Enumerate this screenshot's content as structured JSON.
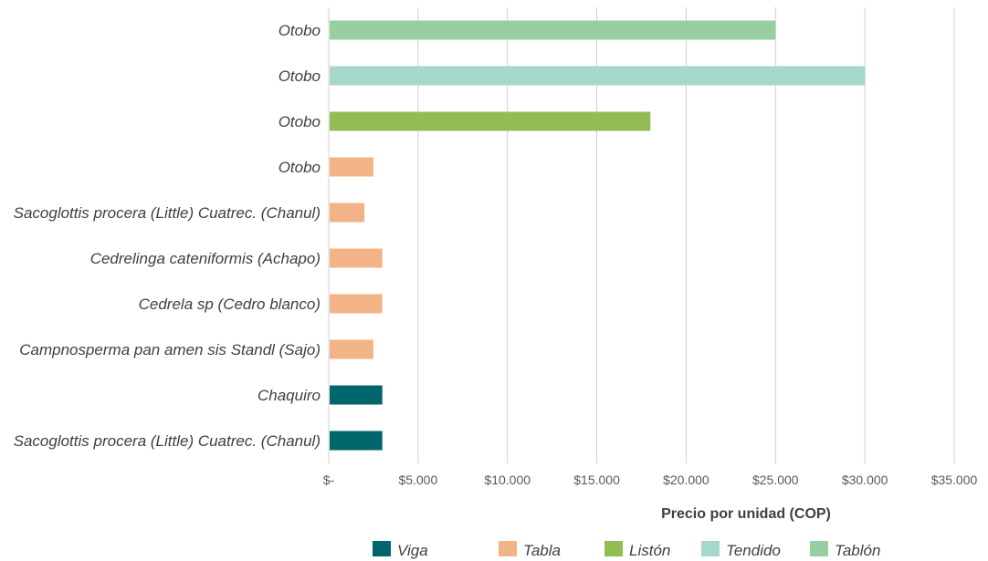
{
  "chart_data": {
    "type": "bar",
    "orientation": "horizontal",
    "title": "",
    "xlabel": "Precio por unidad (COP)",
    "ylabel": "",
    "xlim": [
      0,
      35000
    ],
    "grid": true,
    "legend_position": "bottom",
    "x_ticks": [
      0,
      5000,
      10000,
      15000,
      20000,
      25000,
      30000,
      35000
    ],
    "x_tick_labels": [
      "$-",
      "$5.000",
      "$10.000",
      "$15.000",
      "$20.000",
      "$25.000",
      "$30.000",
      "$35.000"
    ],
    "series_legend": [
      {
        "name": "Viga",
        "color": "#00666b"
      },
      {
        "name": "Tabla",
        "color": "#f2b486"
      },
      {
        "name": "Listón",
        "color": "#92bd55"
      },
      {
        "name": "Tendido",
        "color": "#a6d7cb"
      },
      {
        "name": "Tablón",
        "color": "#98cfa2"
      }
    ],
    "bars": [
      {
        "category": "Otobo",
        "series": "Tablón",
        "value": 25000
      },
      {
        "category": "Otobo",
        "series": "Tendido",
        "value": 30000
      },
      {
        "category": "Otobo",
        "series": "Listón",
        "value": 18000
      },
      {
        "category": "Otobo",
        "series": "Tabla",
        "value": 2500
      },
      {
        "category": "Sacoglottis procera (Little) Cuatrec. (Chanul)",
        "series": "Tabla",
        "value": 2000
      },
      {
        "category": "Cedrelinga cateniformis (Achapo)",
        "series": "Tabla",
        "value": 3000
      },
      {
        "category": "Cedrela sp (Cedro blanco)",
        "series": "Tabla",
        "value": 3000
      },
      {
        "category": "Campnosperma pan amen sis Standl (Sajo)",
        "series": "Tabla",
        "value": 2500
      },
      {
        "category": "Chaquiro",
        "series": "Viga",
        "value": 3000
      },
      {
        "category": "Sacoglottis procera (Little) Cuatrec. (Chanul)",
        "series": "Viga",
        "value": 3000
      }
    ]
  }
}
